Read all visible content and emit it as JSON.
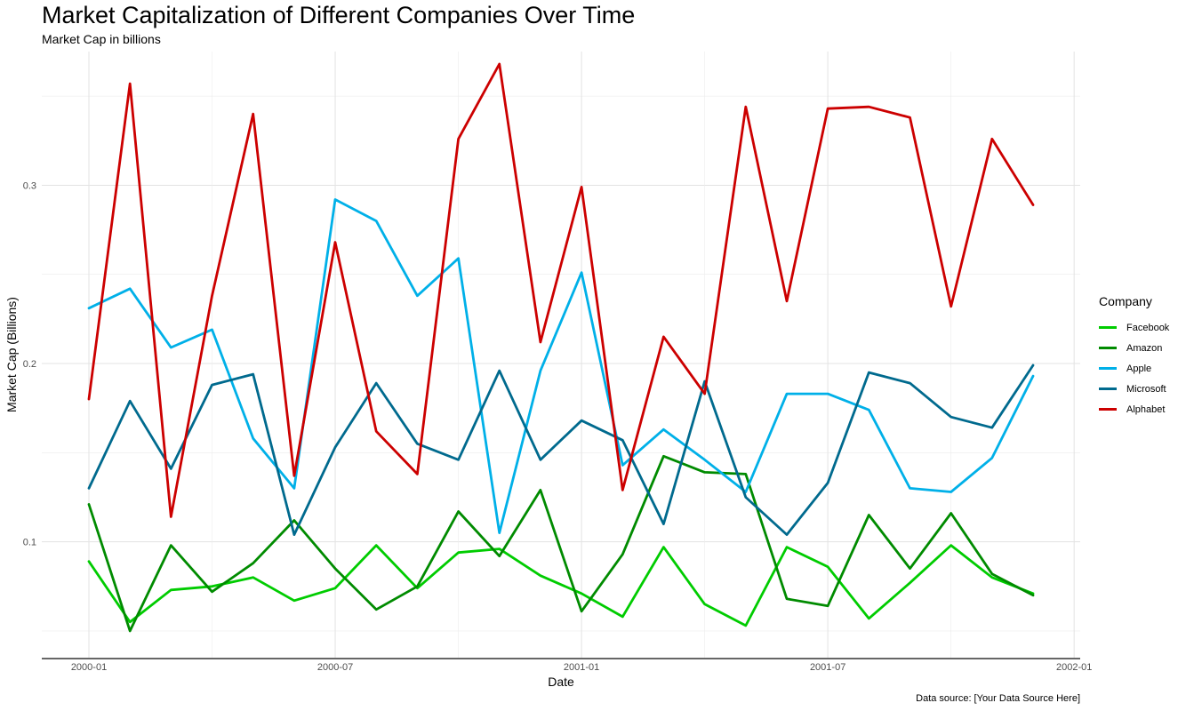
{
  "title": "Market Capitalization of Different Companies Over Time",
  "subtitle": "Market Cap in billions",
  "caption": "Data source: [Your Data Source Here]",
  "colors": {
    "Facebook": "#00cc00",
    "Amazon": "#008b00",
    "Apple": "#00b0e8",
    "Microsoft": "#006a8e",
    "Alphabet": "#cc0000"
  },
  "chart_data": {
    "type": "line",
    "title": "Market Capitalization of Different Companies Over Time",
    "subtitle": "Market Cap in billions",
    "xlabel": "Date",
    "ylabel": "Market Cap (Billions)",
    "x_ticks": [
      "2000-01",
      "2000-07",
      "2001-01",
      "2001-07",
      "2002-01"
    ],
    "y_ticks": [
      "0.1",
      "0.2",
      "0.3"
    ],
    "ylim": [
      0.035,
      0.375
    ],
    "grid": true,
    "legend_title": "Company",
    "legend_position": "right",
    "x": [
      "2000-01",
      "2000-02",
      "2000-03",
      "2000-04",
      "2000-05",
      "2000-06",
      "2000-07",
      "2000-08",
      "2000-09",
      "2000-10",
      "2000-11",
      "2000-12",
      "2001-01",
      "2001-02",
      "2001-03",
      "2001-04",
      "2001-05",
      "2001-06",
      "2001-07",
      "2001-08",
      "2001-09",
      "2001-10",
      "2001-11",
      "2001-12"
    ],
    "series": [
      {
        "name": "Facebook",
        "values": [
          0.089,
          0.055,
          0.073,
          0.075,
          0.08,
          0.067,
          0.074,
          0.098,
          0.074,
          0.094,
          0.096,
          0.081,
          0.071,
          0.058,
          0.097,
          0.065,
          0.053,
          0.097,
          0.086,
          0.057,
          0.077,
          0.098,
          0.08,
          0.071
        ]
      },
      {
        "name": "Amazon",
        "values": [
          0.121,
          0.05,
          0.098,
          0.072,
          0.088,
          0.112,
          0.085,
          0.062,
          0.075,
          0.117,
          0.092,
          0.129,
          0.061,
          0.093,
          0.148,
          0.139,
          0.138,
          0.068,
          0.064,
          0.115,
          0.085,
          0.116,
          0.082,
          0.07
        ]
      },
      {
        "name": "Apple",
        "values": [
          0.231,
          0.242,
          0.209,
          0.219,
          0.158,
          0.13,
          0.292,
          0.28,
          0.238,
          0.259,
          0.105,
          0.196,
          0.251,
          0.143,
          0.163,
          0.146,
          0.128,
          0.183,
          0.183,
          0.174,
          0.13,
          0.128,
          0.147,
          0.193
        ]
      },
      {
        "name": "Microsoft",
        "values": [
          0.13,
          0.179,
          0.141,
          0.188,
          0.194,
          0.104,
          0.153,
          0.189,
          0.155,
          0.146,
          0.196,
          0.146,
          0.168,
          0.157,
          0.11,
          0.19,
          0.125,
          0.104,
          0.133,
          0.195,
          0.189,
          0.17,
          0.164,
          0.199
        ]
      },
      {
        "name": "Alphabet",
        "values": [
          0.18,
          0.357,
          0.114,
          0.238,
          0.34,
          0.137,
          0.268,
          0.162,
          0.138,
          0.326,
          0.368,
          0.212,
          0.299,
          0.129,
          0.215,
          0.183,
          0.344,
          0.235,
          0.343,
          0.344,
          0.338,
          0.232,
          0.326,
          0.289
        ]
      }
    ]
  }
}
